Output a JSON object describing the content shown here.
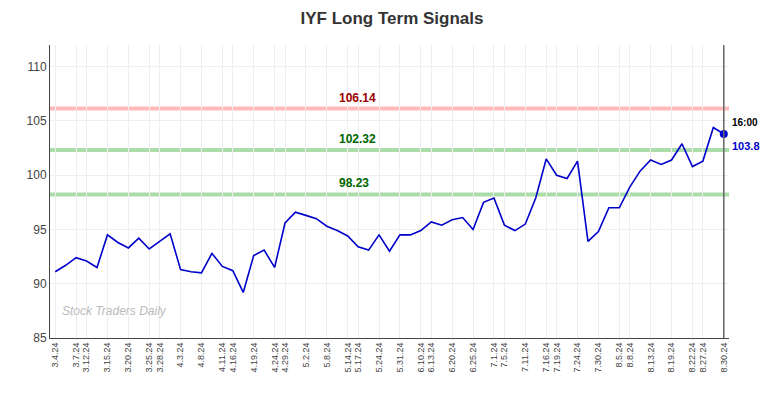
{
  "chart_data": {
    "type": "line",
    "title": "IYF Long Term Signals",
    "categories": [
      "3.4.24",
      null,
      "3.7.24",
      "3.12.24",
      null,
      "3.15.24",
      null,
      "3.20.24",
      null,
      "3.25.24",
      "3.28.24",
      null,
      "4.3.24",
      null,
      "4.8.24",
      null,
      "4.11.24",
      "4.16.24",
      null,
      "4.19.24",
      null,
      "4.24.24",
      "4.29.24",
      null,
      "5.2.24",
      null,
      "5.8.24",
      null,
      "5.14.24",
      "5.17.24",
      null,
      "5.24.24",
      null,
      "5.31.24",
      null,
      "6.10.24",
      "6.13.24",
      null,
      "6.20.24",
      null,
      "6.25.24",
      null,
      "7.1.24",
      "7.5.24",
      null,
      "7.11.24",
      null,
      "7.16.24",
      "7.19.24",
      null,
      "7.24.24",
      null,
      "7.30.24",
      null,
      "8.5.24",
      "8.8.24",
      null,
      "8.13.24",
      null,
      "8.19.24",
      null,
      "8.22.24",
      "8.27.24",
      null,
      "8.30.24"
    ],
    "values": [
      91.1,
      91.7,
      92.4,
      92.1,
      91.5,
      94.5,
      93.8,
      93.3,
      94.2,
      93.2,
      93.9,
      94.6,
      91.3,
      91.1,
      91.0,
      92.8,
      91.6,
      91.2,
      89.2,
      92.6,
      93.1,
      91.5,
      95.6,
      96.6,
      96.3,
      96.0,
      95.3,
      94.9,
      94.4,
      93.4,
      93.1,
      94.5,
      93.0,
      94.5,
      94.5,
      94.9,
      95.7,
      95.4,
      95.9,
      96.1,
      95.0,
      97.5,
      97.9,
      95.4,
      94.9,
      95.5,
      97.9,
      101.5,
      100.0,
      99.7,
      101.3,
      93.9,
      94.8,
      97.0,
      97.0,
      98.9,
      100.4,
      101.4,
      101.0,
      101.4,
      102.9,
      100.8,
      101.3,
      104.4,
      103.8
    ],
    "color": "#0000cc",
    "ylim": [
      85,
      112
    ],
    "yticks": [
      85,
      90,
      95,
      100,
      105,
      110
    ],
    "grid": true,
    "reference_lines": [
      {
        "value": 106.14,
        "label": "106.14",
        "color": "#ffbbbb",
        "label_color": "#990000"
      },
      {
        "value": 102.32,
        "label": "102.32",
        "color": "#aaddaa",
        "label_color": "#006600"
      },
      {
        "value": 98.23,
        "label": "98.23",
        "color": "#aaddaa",
        "label_color": "#006600"
      }
    ],
    "watermark": "Stock Traders Daily",
    "end_labels": {
      "time": "16:00",
      "price": "103.8"
    }
  }
}
